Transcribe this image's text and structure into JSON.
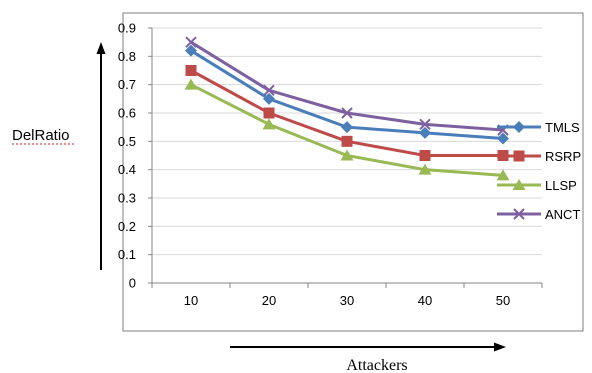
{
  "chart_data": {
    "type": "line",
    "x": [
      10,
      20,
      30,
      40,
      50
    ],
    "series": [
      {
        "name": "TMLS",
        "values": [
          0.82,
          0.65,
          0.55,
          0.53,
          0.51
        ],
        "color": "#4a7ebb",
        "marker": "diamond"
      },
      {
        "name": "RSRP",
        "values": [
          0.75,
          0.6,
          0.5,
          0.45,
          0.45
        ],
        "color": "#be4b48",
        "marker": "square"
      },
      {
        "name": "LLSP",
        "values": [
          0.7,
          0.56,
          0.45,
          0.4,
          0.38
        ],
        "color": "#98b954",
        "marker": "triangle"
      },
      {
        "name": "ANCT",
        "values": [
          0.85,
          0.68,
          0.6,
          0.56,
          0.54
        ],
        "color": "#7d60a0",
        "marker": "x"
      }
    ],
    "ylim": [
      0,
      0.9
    ],
    "yticks": [
      "0",
      "0.1",
      "0.2",
      "0.3",
      "0.4",
      "0.5",
      "0.6",
      "0.7",
      "0.8",
      "0.9"
    ],
    "xticks": [
      "10",
      "20",
      "30",
      "40",
      "50"
    ],
    "xlabel": "Attackers",
    "ylabel": "DelRatio",
    "grid": true,
    "legend": "right"
  }
}
